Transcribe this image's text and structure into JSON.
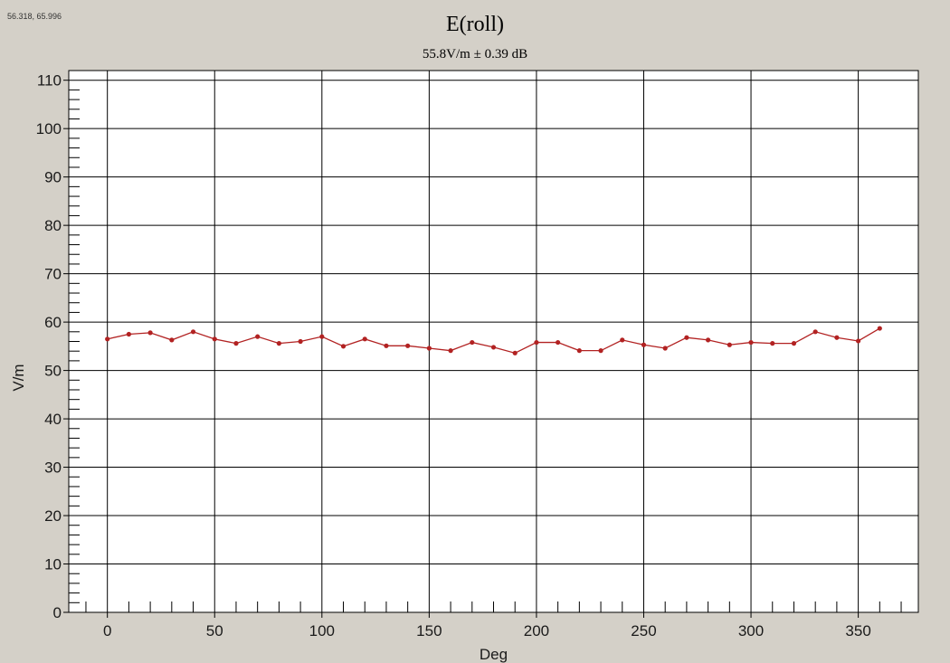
{
  "coordinate_readout": "56.318, 65.996",
  "colors": {
    "background": "#d4d0c8",
    "plot_background": "#ffffff",
    "grid": "#000000",
    "series": "#b22222"
  },
  "chart_data": {
    "type": "line",
    "title": "E(roll)",
    "subtitle": "55.8V/m ± 0.39 dB",
    "xlabel": "Deg",
    "ylabel": "V/m",
    "xlim": [
      -18,
      378
    ],
    "ylim": [
      0,
      112
    ],
    "xticks": [
      0,
      50,
      100,
      150,
      200,
      250,
      300,
      350
    ],
    "xtick_labels": [
      "0",
      "50",
      "100",
      "150",
      "200",
      "250",
      "300",
      "350"
    ],
    "yticks": [
      0,
      10,
      20,
      30,
      40,
      50,
      60,
      70,
      80,
      90,
      100,
      110
    ],
    "ytick_labels": [
      "0",
      "10",
      "20",
      "30",
      "40",
      "50",
      "60",
      "70",
      "80",
      "90",
      "100",
      "110"
    ],
    "x_minor_step": 10,
    "y_minor_step": 2,
    "grid": true,
    "series": [
      {
        "x": [
          0,
          10,
          20,
          30,
          40,
          50,
          60,
          70,
          80,
          90,
          100,
          110,
          120,
          130,
          140,
          150,
          160,
          170,
          180,
          190,
          200,
          210,
          220,
          230,
          240,
          250,
          260,
          270,
          280,
          290,
          300,
          310,
          320,
          330,
          340,
          350,
          360
        ],
        "values": [
          56.5,
          57.5,
          57.8,
          56.3,
          58.0,
          56.5,
          55.6,
          57.0,
          55.6,
          56.0,
          57.0,
          55.0,
          56.5,
          55.1,
          55.1,
          54.6,
          54.1,
          55.8,
          54.8,
          53.6,
          55.8,
          55.8,
          54.1,
          54.1,
          56.3,
          55.3,
          54.6,
          56.8,
          56.3,
          55.3,
          55.8,
          55.6,
          55.6,
          58.0,
          56.8,
          56.1,
          58.7
        ]
      }
    ]
  }
}
